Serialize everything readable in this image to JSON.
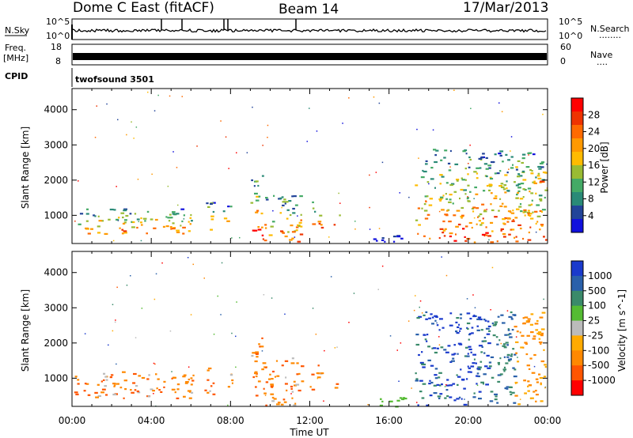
{
  "header": {
    "radar": "Dome C East (fitACF)",
    "beam": "Beam 14",
    "date": "17/Mar/2013"
  },
  "nsky_panel": {
    "left_label": "N.Sky",
    "right_label": "N.Search",
    "right_dots": "........",
    "left_ticks": [
      "10^5",
      "10^0"
    ],
    "right_ticks": [
      "10^5",
      "10^0"
    ]
  },
  "freq_panel": {
    "left_label_1": "Freq.",
    "left_label_2": "[MHz]",
    "left_ticks": [
      "18",
      "8"
    ],
    "right_label": "Nave",
    "right_dots": "....",
    "right_ticks": [
      "60",
      "0"
    ]
  },
  "cpid_panel": {
    "label": "CPID",
    "program": "twofsound 3501"
  },
  "chart_data": [
    {
      "type": "heatmap",
      "panel": "power",
      "ylabel": "Slant Range [km]",
      "ylim": [
        200,
        4600
      ],
      "yticks": [
        1000,
        2000,
        3000,
        4000
      ],
      "xlim_hours": [
        0,
        24
      ],
      "xticks": [
        "00:00",
        "04:00",
        "08:00",
        "12:00",
        "16:00",
        "20:00",
        "00:00"
      ],
      "colorbar": {
        "label": "Power [dB]",
        "ticks": [
          "28",
          "24",
          "20",
          "16",
          "12",
          "8",
          "4"
        ],
        "colors": [
          "#ff0000",
          "#ee3300",
          "#ff6a00",
          "#ff9900",
          "#ffbb00",
          "#99bb33",
          "#44aa66",
          "#2a8a77",
          "#224499",
          "#1111dd"
        ]
      },
      "patches": [
        {
          "t0": 0.1,
          "t1": 6.1,
          "r0": 450,
          "r1": 1200
        },
        {
          "t0": 6.6,
          "t1": 7.1,
          "r0": 550,
          "r1": 1500
        },
        {
          "t0": 7.6,
          "t1": 8.1,
          "r0": 700,
          "r1": 1300
        },
        {
          "t0": 9.0,
          "t1": 9.6,
          "r0": 450,
          "r1": 2300
        },
        {
          "t0": 9.6,
          "t1": 11.6,
          "r0": 250,
          "r1": 1600
        },
        {
          "t0": 12.0,
          "t1": 12.6,
          "r0": 600,
          "r1": 1400
        },
        {
          "t0": 13.2,
          "t1": 13.5,
          "r0": 700,
          "r1": 1100
        },
        {
          "t0": 15.2,
          "t1": 17.0,
          "r0": 200,
          "r1": 500
        },
        {
          "t0": 17.3,
          "t1": 23.9,
          "r0": 250,
          "r1": 2900
        },
        {
          "t0": 23.1,
          "t1": 23.7,
          "r0": 1900,
          "r1": 2500
        }
      ]
    },
    {
      "type": "heatmap",
      "panel": "velocity",
      "ylabel": "Slant Range [km]",
      "xlabel": "Time UT",
      "ylim": [
        200,
        4600
      ],
      "yticks": [
        1000,
        2000,
        3000,
        4000
      ],
      "xlim_hours": [
        0,
        24
      ],
      "xticks": [
        "00:00",
        "04:00",
        "08:00",
        "12:00",
        "16:00",
        "20:00",
        "00:00"
      ],
      "colorbar": {
        "label": "Velocity [m s^-1]",
        "ticks": [
          "1000",
          "500",
          "100",
          "25",
          "-25",
          "-100",
          "-500",
          "-1000"
        ],
        "colors": [
          "#1a3acc",
          "#2a60aa",
          "#3a8a6a",
          "#55bb33",
          "#bbbbbb",
          "#ffaa00",
          "#ff8800",
          "#ff5500",
          "#ff0000"
        ]
      },
      "patches": [
        {
          "t0": 0.1,
          "t1": 6.1,
          "r0": 450,
          "r1": 1200
        },
        {
          "t0": 6.6,
          "t1": 7.1,
          "r0": 550,
          "r1": 1500
        },
        {
          "t0": 7.6,
          "t1": 8.1,
          "r0": 700,
          "r1": 1300
        },
        {
          "t0": 9.0,
          "t1": 9.6,
          "r0": 450,
          "r1": 2300
        },
        {
          "t0": 9.6,
          "t1": 11.6,
          "r0": 250,
          "r1": 1600
        },
        {
          "t0": 12.0,
          "t1": 12.6,
          "r0": 600,
          "r1": 1400
        },
        {
          "t0": 13.2,
          "t1": 13.5,
          "r0": 700,
          "r1": 1100
        },
        {
          "t0": 15.2,
          "t1": 17.0,
          "r0": 200,
          "r1": 500
        },
        {
          "t0": 17.3,
          "t1": 23.9,
          "r0": 250,
          "r1": 2900
        },
        {
          "t0": 23.1,
          "t1": 23.7,
          "r0": 1900,
          "r1": 2500
        }
      ]
    }
  ]
}
